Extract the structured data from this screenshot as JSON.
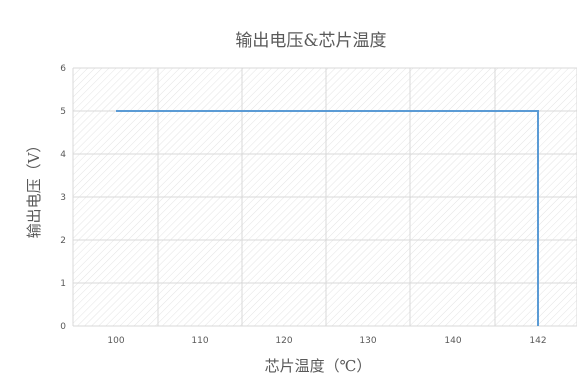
{
  "chart_data": {
    "type": "line",
    "title": "输出电压&芯片温度",
    "xlabel": "芯片温度（℃）",
    "ylabel": "输出电压（V）",
    "categories": [
      "100",
      "110",
      "120",
      "130",
      "140",
      "142"
    ],
    "y_ticks": [
      "0",
      "1",
      "2",
      "3",
      "4",
      "5",
      "6"
    ],
    "ylim": [
      0,
      6
    ],
    "series": [
      {
        "points": [
          {
            "x": "100",
            "y": 5
          },
          {
            "x": "142",
            "y": 5
          },
          {
            "x": "142",
            "y": 0
          }
        ]
      }
    ],
    "grid": true,
    "legend": "none",
    "line_color": "#5b9bd5",
    "grid_color": "#d9d9d9",
    "plot_pattern": "diagonal-hatch"
  }
}
